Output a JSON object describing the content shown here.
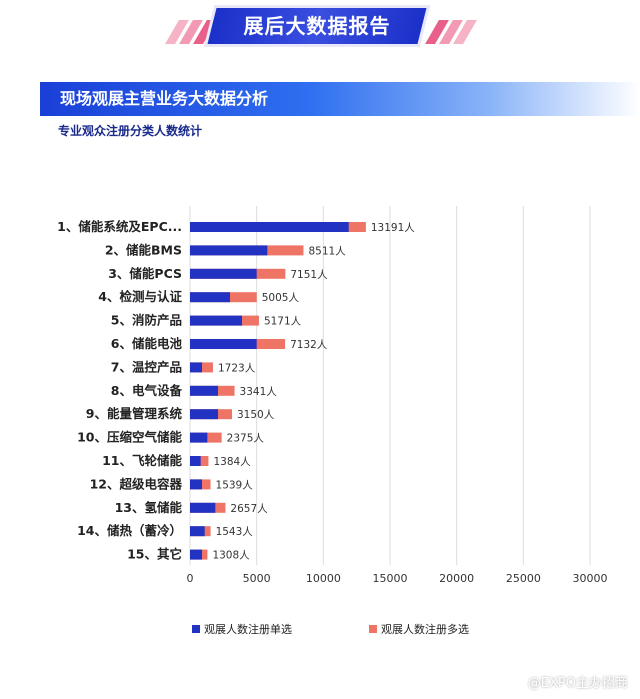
{
  "header": {
    "banner_title": "展后大数据报告",
    "section_title": "现场观展主营业务大数据分析",
    "subtitle": "专业观众注册分类人数统计"
  },
  "colors": {
    "single": "#2233c4",
    "multi": "#ee7466",
    "banner": "#1a30c8"
  },
  "chart_data": {
    "type": "bar",
    "orientation": "horizontal",
    "stacked": true,
    "categories": [
      "1、储能系统及EPC...",
      "2、储能BMS",
      "3、储能PCS",
      "4、检测与认证",
      "5、消防产品",
      "6、储能电池",
      "7、温控产品",
      "8、电气设备",
      "9、能量管理系统",
      "10、压缩空气储能",
      "11、飞轮储能",
      "12、超级电容器",
      "13、氢储能",
      "14、储热（蓄冷）",
      "15、其它"
    ],
    "series": [
      {
        "name": "观展人数注册单选",
        "values": [
          11900,
          5800,
          5000,
          3000,
          3900,
          5000,
          900,
          2100,
          2100,
          1300,
          800,
          900,
          1900,
          1100,
          900
        ]
      },
      {
        "name": "观展人数注册多选",
        "values": [
          13191,
          8511,
          7151,
          5005,
          5171,
          7132,
          1723,
          3341,
          3150,
          2375,
          1384,
          1539,
          2657,
          1543,
          1308
        ]
      }
    ],
    "total_labels": [
      "13191人",
      "8511人",
      "7151人",
      "5005人",
      "5171人",
      "7132人",
      "1723人",
      "3341人",
      "3150人",
      "2375人",
      "1384人",
      "1539人",
      "2657人",
      "1543人",
      "1308人"
    ],
    "xlim": [
      0,
      30000
    ],
    "xticks": [
      "0",
      "5000",
      "10000",
      "15000",
      "20000",
      "25000",
      "30000"
    ],
    "grid": true,
    "legend": "bottom"
  },
  "watermark": "@EXPO主办招商"
}
